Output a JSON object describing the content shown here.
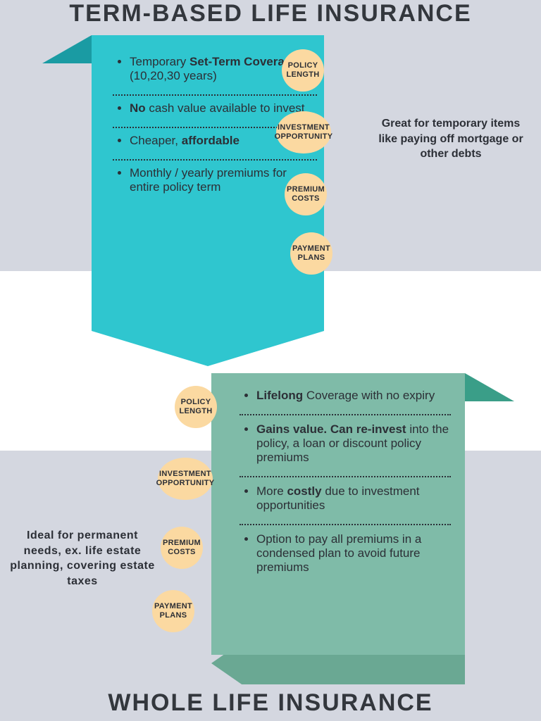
{
  "colors": {
    "page_bg": "#d4d7e0",
    "band_bg": "#ffffff",
    "text": "#2c2f36",
    "title": "#33373d",
    "bubble": "#fbd9a1",
    "top_ribbon": "#2fc6cf",
    "top_ribbon_dark": "#1a9ba3",
    "bot_ribbon": "#7fbba8",
    "bot_ribbon_dark": "#3a9e88",
    "bot_curl": "#6aa893",
    "dotted": "#2b3038"
  },
  "typography": {
    "title_fontsize": 34,
    "title_weight": 900,
    "body_fontsize": 17,
    "bubble_fontsize": 11,
    "sidenote_fontsize": 16
  },
  "top": {
    "title": "TERM-BASED LIFE INSURANCE",
    "side_note": "Great for temporary items like paying off mortgage or other debts",
    "rows": [
      {
        "label": "POLICY LENGTH",
        "pre": "Temporary ",
        "bold": "Set-Term Coverage",
        "post": " (10,20,30 years)"
      },
      {
        "label": "INVESTMENT OPPORTUNITY",
        "pre": "",
        "bold": "No",
        "post": " cash value available to invest"
      },
      {
        "label": "PREMIUM COSTS",
        "pre": "Cheaper, ",
        "bold": "affordable",
        "post": ""
      },
      {
        "label": "PAYMENT PLANS",
        "pre": "Monthly / yearly premiums for entire policy term",
        "bold": "",
        "post": ""
      }
    ]
  },
  "bottom": {
    "title": "WHOLE LIFE INSURANCE",
    "side_note": "Ideal for permanent needs, ex. life estate planning, covering estate taxes",
    "rows": [
      {
        "label": "POLICY LENGTH",
        "pre": "",
        "bold": "Lifelong",
        "post": " Coverage with no expiry"
      },
      {
        "label": "INVESTMENT OPPORTUNITY",
        "pre": "",
        "bold": "Gains value. Can re-invest",
        "post": " into the policy, a loan or discount policy premiums"
      },
      {
        "label": "PREMIUM COSTS",
        "pre": "More ",
        "bold": "costly",
        "post": " due to investment opportunities"
      },
      {
        "label": "PAYMENT PLANS",
        "pre": "Option to pay all premiums in a condensed plan to avoid future premiums",
        "bold": "",
        "post": ""
      }
    ]
  }
}
